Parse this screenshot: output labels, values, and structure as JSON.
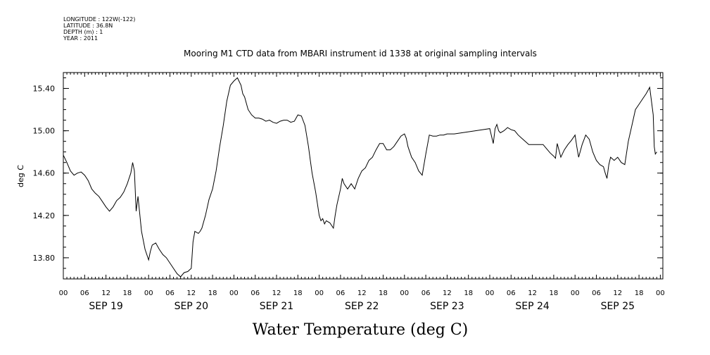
{
  "meta": {
    "longitude": "LONGITUDE : 122W(-122)",
    "latitude": "LATITUDE : 36.8N",
    "depth": "DEPTH (m) : 1",
    "year": "YEAR : 2011"
  },
  "chart_data": {
    "type": "line",
    "title": "Mooring M1 CTD data from MBARI instrument id 1338 at original sampling intervals",
    "ylabel": "deg C",
    "bottom_label": "Water Temperature (deg C)",
    "ylim": [
      13.6,
      15.55
    ],
    "yticks": [
      "13.80",
      "14.20",
      "14.60",
      "15.00",
      "15.40"
    ],
    "ytick_values": [
      13.8,
      14.2,
      14.6,
      15.0,
      15.4
    ],
    "hour_labels": [
      "00",
      "06",
      "12",
      "18"
    ],
    "days": [
      "SEP 19",
      "SEP 20",
      "SEP 21",
      "SEP 22",
      "SEP 23",
      "SEP 24",
      "SEP 25"
    ],
    "xlim_hours": [
      0,
      168
    ],
    "x_unit": "hours",
    "series": [
      {
        "x": [
          0,
          1,
          2,
          3,
          4,
          5,
          6,
          7,
          8,
          9,
          10,
          11,
          12,
          13,
          14,
          15,
          16,
          17,
          18,
          19,
          19.5,
          20,
          20.5,
          21,
          22,
          23,
          24,
          24.5,
          25,
          26,
          27,
          28,
          29,
          30,
          31,
          32,
          33,
          34,
          35,
          36,
          36.5,
          37,
          38,
          38.5,
          39,
          40,
          41,
          42,
          43,
          44,
          45,
          46,
          47,
          48,
          49,
          50,
          50.5,
          51,
          52,
          53,
          54,
          55,
          56,
          57,
          58,
          59,
          60,
          61,
          62,
          63,
          64,
          65,
          66,
          67,
          68,
          69,
          69.5,
          70,
          71,
          72,
          72.5,
          73,
          73.5,
          74,
          75,
          76,
          76.5,
          77,
          78,
          78.5,
          79,
          80,
          81,
          82,
          83,
          84,
          85,
          86,
          87,
          88,
          89,
          90,
          91,
          92,
          93,
          94,
          95,
          96,
          96.5,
          97,
          98,
          99,
          100,
          101,
          102,
          103,
          104,
          105,
          106,
          107,
          108,
          110,
          114,
          118,
          120,
          120.5,
          121,
          121.5,
          122,
          122.5,
          123,
          124,
          125,
          126,
          127,
          128,
          129,
          130,
          131,
          132,
          133,
          134,
          135,
          136,
          137,
          138,
          138.5,
          139,
          140,
          141,
          142,
          143,
          144,
          144.5,
          145,
          146,
          147,
          148,
          149,
          150,
          151,
          152,
          152.5,
          153,
          153.5,
          154,
          155,
          156,
          157,
          158,
          159,
          160,
          161,
          162,
          163,
          164,
          165,
          166,
          166.3,
          166.6,
          167
        ],
        "y": [
          14.77,
          14.7,
          14.62,
          14.58,
          14.6,
          14.61,
          14.58,
          14.53,
          14.45,
          14.41,
          14.38,
          14.33,
          14.28,
          14.24,
          14.28,
          14.34,
          14.37,
          14.42,
          14.5,
          14.6,
          14.7,
          14.62,
          14.24,
          14.38,
          14.05,
          13.88,
          13.78,
          13.86,
          13.92,
          13.94,
          13.88,
          13.83,
          13.8,
          13.75,
          13.7,
          13.65,
          13.62,
          13.66,
          13.67,
          13.7,
          13.95,
          14.05,
          14.03,
          14.05,
          14.08,
          14.2,
          14.35,
          14.45,
          14.62,
          14.85,
          15.05,
          15.28,
          15.43,
          15.47,
          15.5,
          15.43,
          15.35,
          15.32,
          15.2,
          15.15,
          15.12,
          15.12,
          15.11,
          15.09,
          15.1,
          15.08,
          15.07,
          15.09,
          15.1,
          15.1,
          15.08,
          15.09,
          15.15,
          15.14,
          15.05,
          14.85,
          14.72,
          14.6,
          14.42,
          14.2,
          14.15,
          14.17,
          14.12,
          14.15,
          14.13,
          14.08,
          14.2,
          14.3,
          14.45,
          14.55,
          14.5,
          14.45,
          14.5,
          14.45,
          14.55,
          14.62,
          14.65,
          14.72,
          14.75,
          14.82,
          14.88,
          14.88,
          14.82,
          14.82,
          14.85,
          14.9,
          14.95,
          14.97,
          14.93,
          14.85,
          14.75,
          14.7,
          14.62,
          14.58,
          14.78,
          14.96,
          14.95,
          14.95,
          14.96,
          14.96,
          14.97,
          14.97,
          14.99,
          15.01,
          15.02,
          14.95,
          14.88,
          15.02,
          15.06,
          15.0,
          14.98,
          15.0,
          15.03,
          15.01,
          15.0,
          14.96,
          14.93,
          14.9,
          14.87,
          14.87,
          14.87,
          14.87,
          14.87,
          14.83,
          14.79,
          14.76,
          14.74,
          14.88,
          14.75,
          14.82,
          14.87,
          14.91,
          14.96,
          14.85,
          14.75,
          14.87,
          14.96,
          14.92,
          14.8,
          14.72,
          14.68,
          14.66,
          14.6,
          14.55,
          14.68,
          14.75,
          14.72,
          14.75,
          14.7,
          14.68,
          14.9,
          15.05,
          15.2,
          15.25,
          15.3,
          15.35,
          15.41,
          15.15,
          14.85,
          14.78,
          14.8
        ]
      }
    ]
  }
}
